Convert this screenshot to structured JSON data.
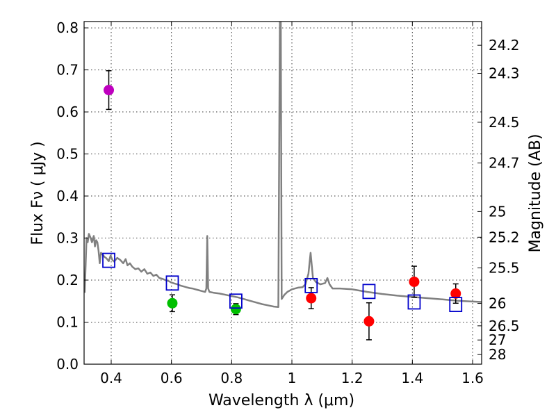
{
  "chart_data": {
    "type": "scatter",
    "title": "",
    "xlabel": "Wavelength  λ (μm)",
    "ylabel": "Flux  Fν  ( μJy )",
    "y2label": "Magnitude (AB)",
    "xlim": [
      0.31,
      1.63
    ],
    "ylim": [
      0.0,
      0.815
    ],
    "grid": true,
    "x_ticks": [
      0.4,
      0.6,
      0.8,
      1.0,
      1.2,
      1.4,
      1.6
    ],
    "x_tick_labels": [
      "0.4",
      "0.6",
      "0.8",
      "1",
      "1.2",
      "1.4",
      "1.6"
    ],
    "y_ticks": [
      0.0,
      0.1,
      0.2,
      0.3,
      0.4,
      0.5,
      0.6,
      0.7,
      0.8
    ],
    "y_tick_labels": [
      "0.0",
      "0.1",
      "0.2",
      "0.3",
      "0.4",
      "0.5",
      "0.6",
      "0.7",
      "0.8"
    ],
    "mag_ticks": [
      "24.2",
      "24.3",
      "24.5",
      "24.7",
      "25",
      "25.2",
      "25.5",
      "26",
      "26.5",
      "27",
      "28"
    ],
    "series": [
      {
        "name": "observed-violet",
        "color": "#bf00bf",
        "marker": "circle",
        "points": [
          {
            "x": 0.392,
            "y": 0.652,
            "err": 0.046
          }
        ]
      },
      {
        "name": "observed-green",
        "color": "#00bf00",
        "marker": "circle",
        "points": [
          {
            "x": 0.603,
            "y": 0.145,
            "err": 0.02
          },
          {
            "x": 0.814,
            "y": 0.131,
            "err": 0.013
          }
        ]
      },
      {
        "name": "observed-red",
        "color": "#ff0000",
        "marker": "circle",
        "points": [
          {
            "x": 1.064,
            "y": 0.157,
            "err": 0.025
          },
          {
            "x": 1.256,
            "y": 0.102,
            "err": 0.044
          },
          {
            "x": 1.406,
            "y": 0.196,
            "err": 0.037
          },
          {
            "x": 1.544,
            "y": 0.168,
            "err": 0.023
          }
        ]
      },
      {
        "name": "model-photometry",
        "color": "#0000cc",
        "marker": "square",
        "points": [
          {
            "x": 0.392,
            "y": 0.247
          },
          {
            "x": 0.603,
            "y": 0.193
          },
          {
            "x": 0.814,
            "y": 0.15
          },
          {
            "x": 1.064,
            "y": 0.187
          },
          {
            "x": 1.256,
            "y": 0.173
          },
          {
            "x": 1.406,
            "y": 0.148
          },
          {
            "x": 1.544,
            "y": 0.142
          }
        ]
      }
    ],
    "spectrum": {
      "name": "model-spectrum",
      "color": "#808080",
      "points": [
        [
          0.312,
          0.17
        ],
        [
          0.318,
          0.3
        ],
        [
          0.322,
          0.29
        ],
        [
          0.326,
          0.31
        ],
        [
          0.332,
          0.3
        ],
        [
          0.336,
          0.29
        ],
        [
          0.342,
          0.305
        ],
        [
          0.346,
          0.28
        ],
        [
          0.35,
          0.295
        ],
        [
          0.354,
          0.29
        ],
        [
          0.358,
          0.27
        ],
        [
          0.362,
          0.24
        ],
        [
          0.366,
          0.265
        ],
        [
          0.372,
          0.26
        ],
        [
          0.378,
          0.255
        ],
        [
          0.384,
          0.252
        ],
        [
          0.392,
          0.245
        ],
        [
          0.398,
          0.258
        ],
        [
          0.404,
          0.248
        ],
        [
          0.41,
          0.244
        ],
        [
          0.42,
          0.253
        ],
        [
          0.43,
          0.248
        ],
        [
          0.44,
          0.24
        ],
        [
          0.448,
          0.25
        ],
        [
          0.454,
          0.235
        ],
        [
          0.462,
          0.24
        ],
        [
          0.47,
          0.232
        ],
        [
          0.48,
          0.226
        ],
        [
          0.49,
          0.228
        ],
        [
          0.5,
          0.22
        ],
        [
          0.51,
          0.226
        ],
        [
          0.52,
          0.215
        ],
        [
          0.53,
          0.218
        ],
        [
          0.54,
          0.21
        ],
        [
          0.55,
          0.213
        ],
        [
          0.56,
          0.205
        ],
        [
          0.57,
          0.203
        ],
        [
          0.58,
          0.2
        ],
        [
          0.59,
          0.198
        ],
        [
          0.6,
          0.194
        ],
        [
          0.61,
          0.192
        ],
        [
          0.62,
          0.19
        ],
        [
          0.63,
          0.187
        ],
        [
          0.64,
          0.185
        ],
        [
          0.65,
          0.183
        ],
        [
          0.66,
          0.181
        ],
        [
          0.67,
          0.18
        ],
        [
          0.68,
          0.178
        ],
        [
          0.69,
          0.176
        ],
        [
          0.7,
          0.174
        ],
        [
          0.712,
          0.172
        ],
        [
          0.716,
          0.18
        ],
        [
          0.719,
          0.305
        ],
        [
          0.722,
          0.18
        ],
        [
          0.726,
          0.172
        ],
        [
          0.74,
          0.17
        ],
        [
          0.76,
          0.168
        ],
        [
          0.78,
          0.165
        ],
        [
          0.8,
          0.162
        ],
        [
          0.82,
          0.159
        ],
        [
          0.84,
          0.155
        ],
        [
          0.86,
          0.151
        ],
        [
          0.88,
          0.147
        ],
        [
          0.9,
          0.143
        ],
        [
          0.92,
          0.14
        ],
        [
          0.94,
          0.137
        ],
        [
          0.955,
          0.136
        ],
        [
          0.96,
          0.82
        ],
        [
          0.963,
          0.82
        ],
        [
          0.966,
          0.155
        ],
        [
          0.975,
          0.165
        ],
        [
          0.985,
          0.172
        ],
        [
          1.0,
          0.178
        ],
        [
          1.02,
          0.182
        ],
        [
          1.035,
          0.183
        ],
        [
          1.045,
          0.19
        ],
        [
          1.055,
          0.215
        ],
        [
          1.062,
          0.265
        ],
        [
          1.07,
          0.205
        ],
        [
          1.08,
          0.195
        ],
        [
          1.095,
          0.19
        ],
        [
          1.11,
          0.193
        ],
        [
          1.118,
          0.205
        ],
        [
          1.125,
          0.19
        ],
        [
          1.135,
          0.18
        ],
        [
          1.16,
          0.18
        ],
        [
          1.2,
          0.178
        ],
        [
          1.25,
          0.172
        ],
        [
          1.3,
          0.167
        ],
        [
          1.35,
          0.163
        ],
        [
          1.4,
          0.16
        ],
        [
          1.45,
          0.157
        ],
        [
          1.5,
          0.154
        ],
        [
          1.55,
          0.151
        ],
        [
          1.6,
          0.149
        ],
        [
          1.63,
          0.148
        ]
      ]
    }
  }
}
